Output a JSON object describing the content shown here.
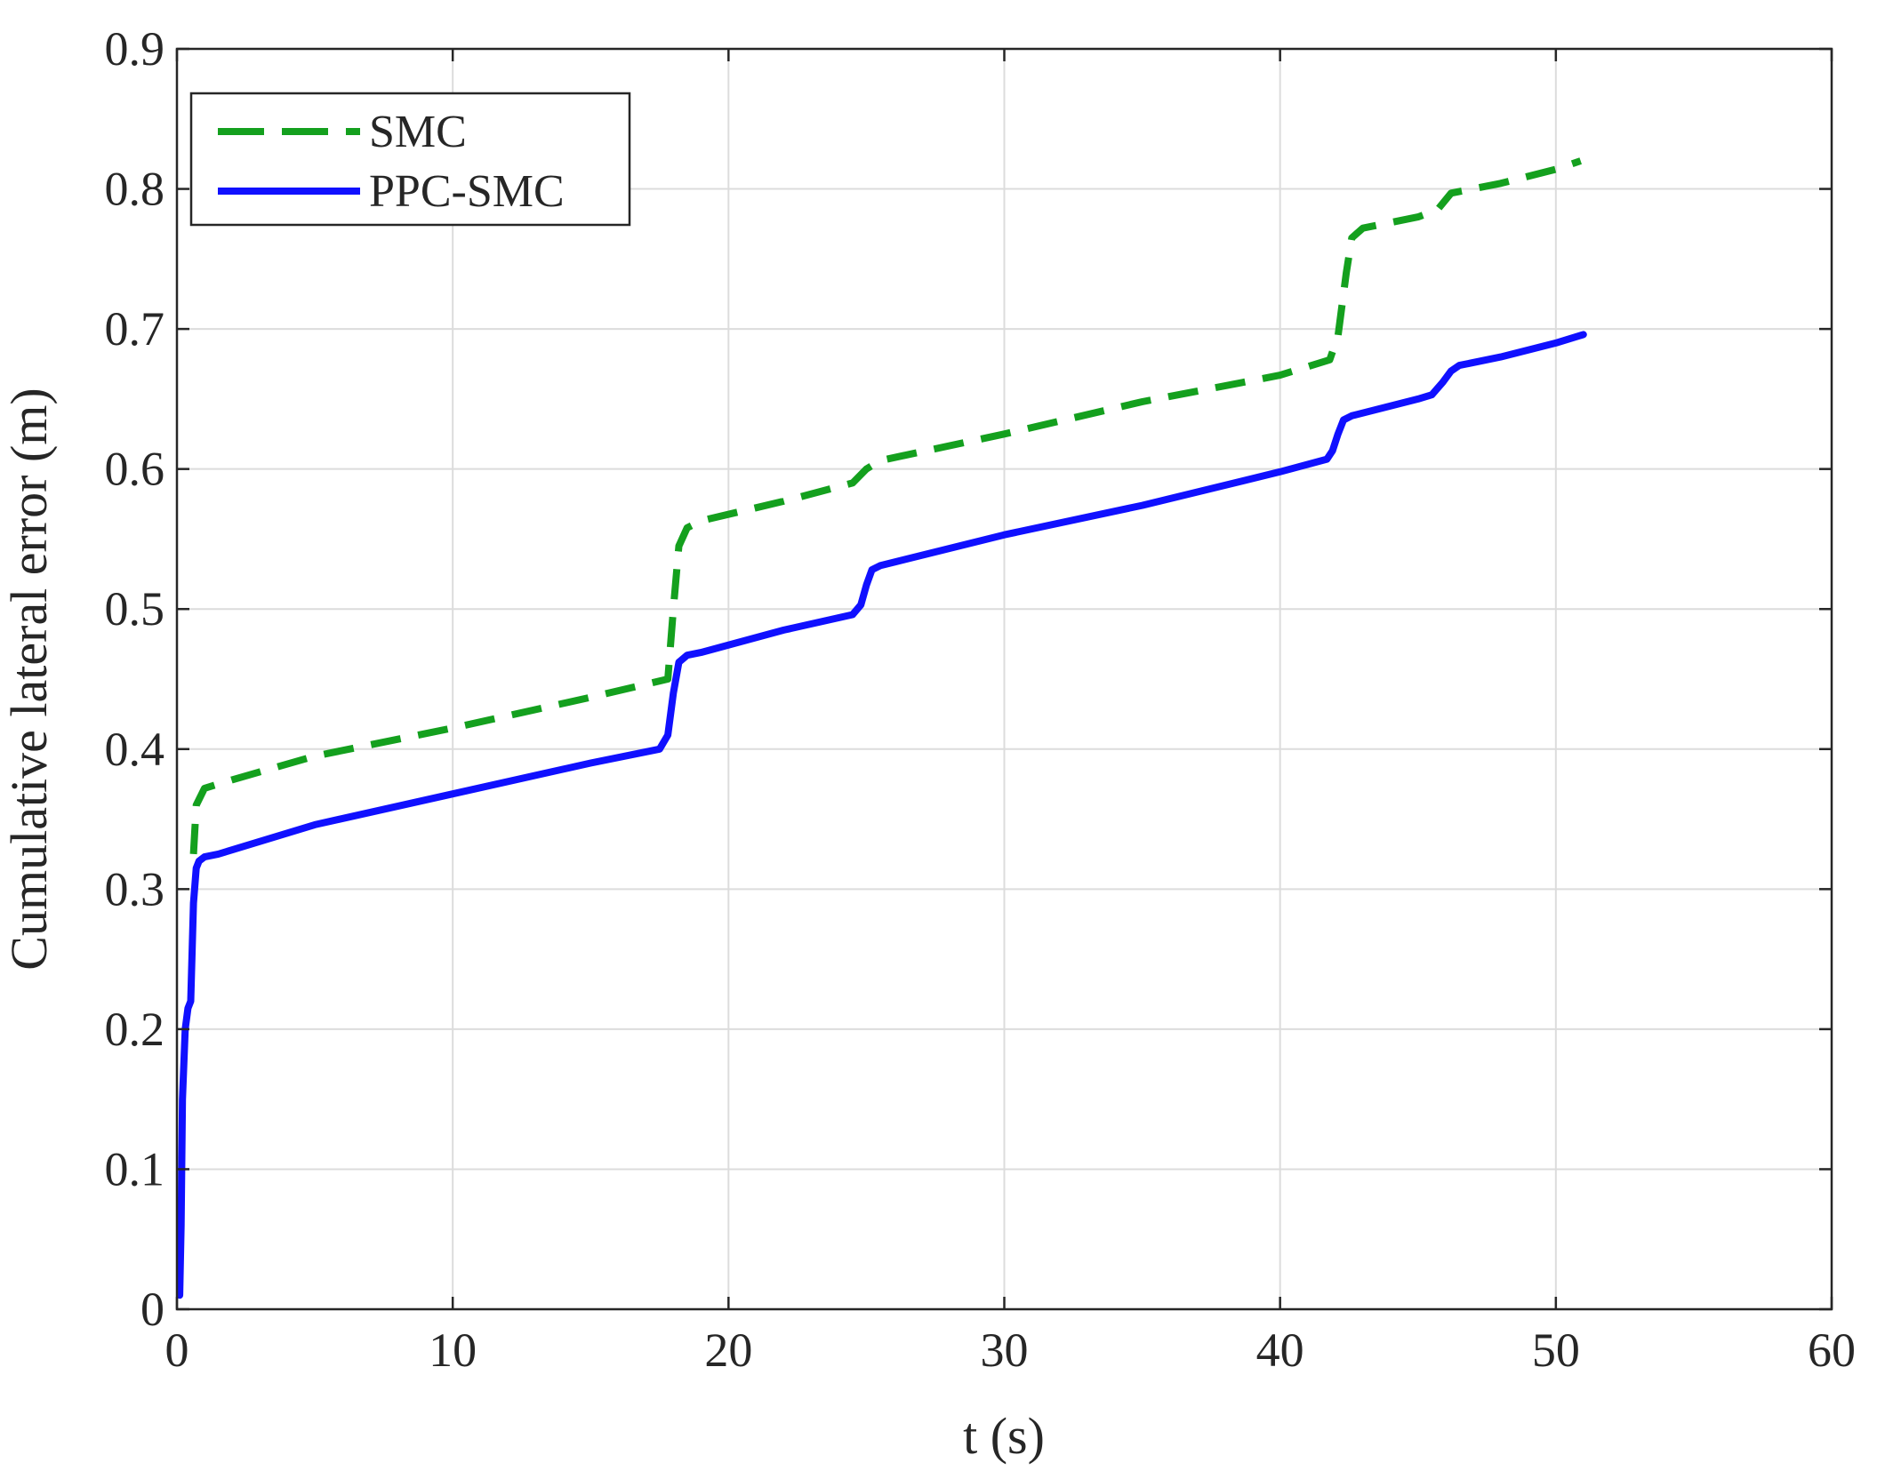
{
  "chart_data": {
    "type": "line",
    "title": "",
    "xlabel": "t (s)",
    "ylabel": "Cumulative lateral error (m)",
    "xlim": [
      0,
      60
    ],
    "ylim": [
      0,
      0.9
    ],
    "xticks": [
      0,
      10,
      20,
      30,
      40,
      50,
      60
    ],
    "yticks": [
      0,
      0.1,
      0.2,
      0.3,
      0.4,
      0.5,
      0.6,
      0.7,
      0.8,
      0.9
    ],
    "xtick_labels": [
      "0",
      "10",
      "20",
      "30",
      "40",
      "50",
      "60"
    ],
    "ytick_labels": [
      "0",
      "0.1",
      "0.2",
      "0.3",
      "0.4",
      "0.5",
      "0.6",
      "0.7",
      "0.8",
      "0.9"
    ],
    "grid": true,
    "legend_position": "top-left",
    "series": [
      {
        "name": "SMC",
        "color": "#14a01e",
        "style": "dashed",
        "x": [
          0.6,
          0.7,
          1.0,
          2,
          5,
          10,
          15,
          17.8,
          18.0,
          18.2,
          18.5,
          19,
          22,
          24.5,
          25,
          25.5,
          30,
          35,
          40,
          41.8,
          42.1,
          42.4,
          42.6,
          43,
          45,
          45.7,
          46.2,
          48,
          50,
          50.9
        ],
        "y": [
          0.325,
          0.36,
          0.372,
          0.378,
          0.395,
          0.415,
          0.437,
          0.45,
          0.5,
          0.545,
          0.558,
          0.563,
          0.577,
          0.59,
          0.6,
          0.606,
          0.625,
          0.648,
          0.667,
          0.678,
          0.695,
          0.74,
          0.765,
          0.772,
          0.78,
          0.785,
          0.797,
          0.804,
          0.814,
          0.82
        ]
      },
      {
        "name": "PPC-SMC",
        "color": "#1010ff",
        "style": "solid",
        "x": [
          0.1,
          0.15,
          0.2,
          0.3,
          0.4,
          0.5,
          0.6,
          0.7,
          0.8,
          1.0,
          1.5,
          5,
          10,
          15,
          17.5,
          17.8,
          18.0,
          18.2,
          18.5,
          19,
          22,
          24.5,
          24.8,
          25.0,
          25.2,
          25.5,
          30,
          35,
          40,
          41.7,
          41.9,
          42.1,
          42.3,
          42.6,
          45,
          45.5,
          45.9,
          46.2,
          46.5,
          48,
          50,
          51
        ],
        "y": [
          0.01,
          0.06,
          0.15,
          0.2,
          0.215,
          0.22,
          0.29,
          0.315,
          0.32,
          0.323,
          0.325,
          0.346,
          0.368,
          0.39,
          0.4,
          0.41,
          0.44,
          0.462,
          0.467,
          0.469,
          0.485,
          0.496,
          0.503,
          0.517,
          0.528,
          0.531,
          0.553,
          0.574,
          0.598,
          0.607,
          0.613,
          0.625,
          0.635,
          0.638,
          0.65,
          0.653,
          0.662,
          0.67,
          0.674,
          0.68,
          0.69,
          0.696
        ]
      }
    ]
  }
}
